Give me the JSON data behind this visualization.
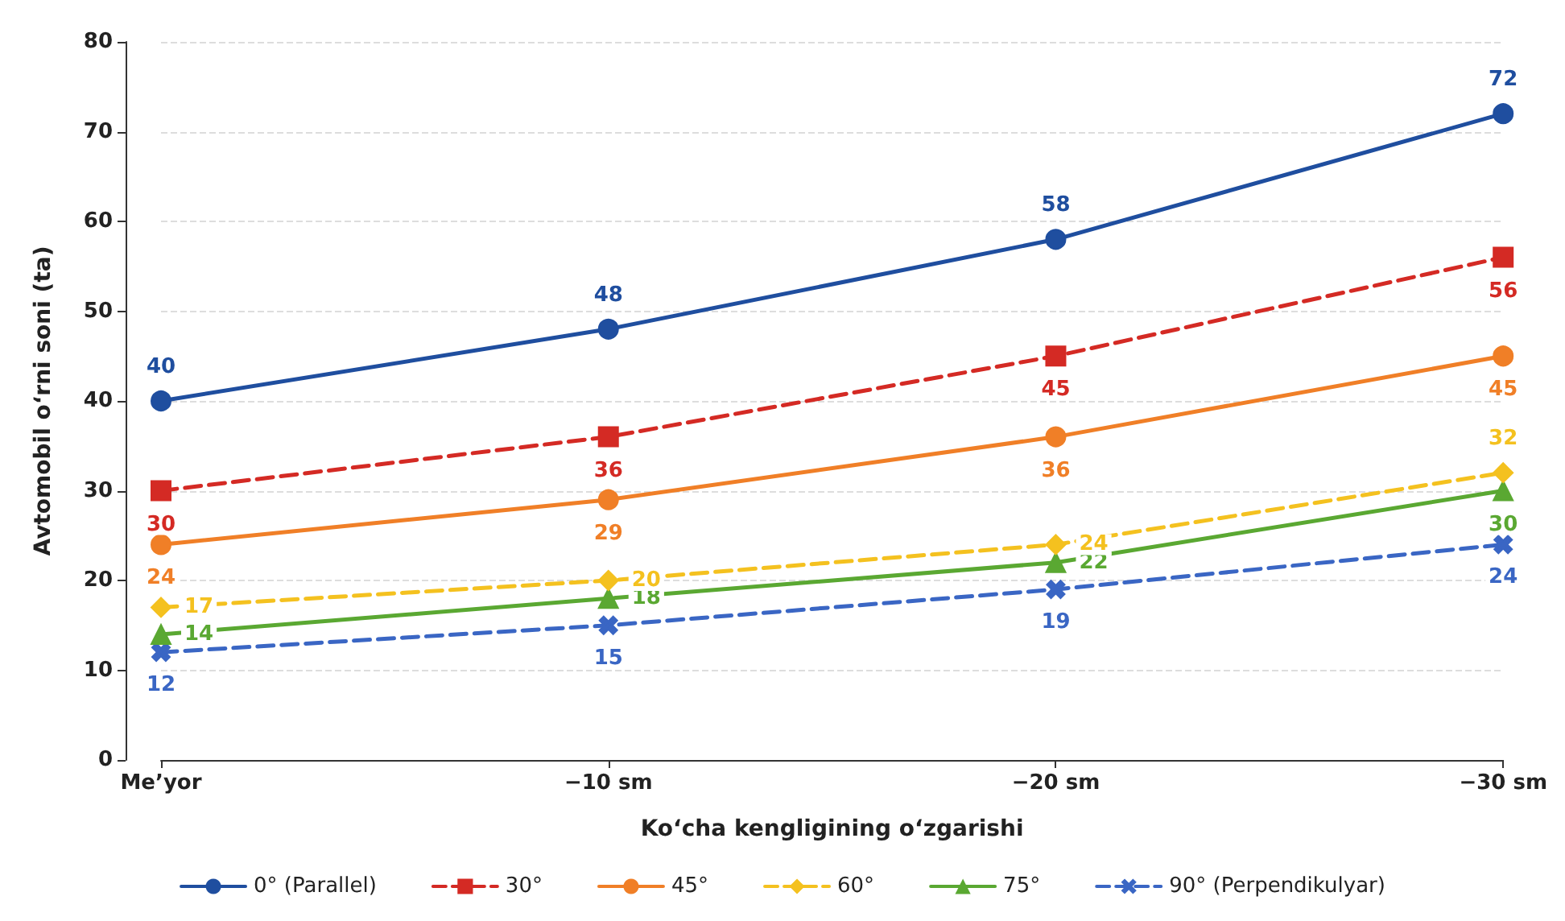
{
  "chart_data": {
    "type": "line",
    "xlabel": "Ko‘cha kengligining o‘zgarishi",
    "ylabel": "Avtomobil o‘rni soni (ta)",
    "categories": [
      "Me’yor",
      "−10 sm",
      "−20 sm",
      "−30 sm"
    ],
    "series": [
      {
        "name": "0° (Parallel)",
        "color": "#1f4e9f",
        "values": [
          40,
          48,
          58,
          72
        ],
        "marker": "circle",
        "line_style": "solid"
      },
      {
        "name": "30°",
        "color": "#d42a24",
        "values": [
          30,
          36,
          45,
          56
        ],
        "marker": "square",
        "line_style": "dashed"
      },
      {
        "name": "45°",
        "color": "#f07f27",
        "values": [
          24,
          29,
          36,
          45
        ],
        "marker": "circle",
        "line_style": "solid"
      },
      {
        "name": "60°",
        "color": "#f4c11f",
        "values": [
          17,
          20,
          24,
          32
        ],
        "marker": "diamond",
        "line_style": "dashed"
      },
      {
        "name": "75°",
        "color": "#5aa832",
        "values": [
          14,
          18,
          22,
          30
        ],
        "marker": "triangle",
        "line_style": "solid"
      },
      {
        "name": "90° (Perpendikulyar)",
        "color": "#3a66c4",
        "values": [
          12,
          15,
          19,
          24
        ],
        "marker": "cross",
        "line_style": "dashed"
      }
    ],
    "ylim": [
      0,
      80
    ],
    "yticks": [
      0,
      10,
      20,
      30,
      40,
      50,
      60,
      70,
      80
    ],
    "grid": "y",
    "legend": "bottom",
    "data_labels": true
  }
}
